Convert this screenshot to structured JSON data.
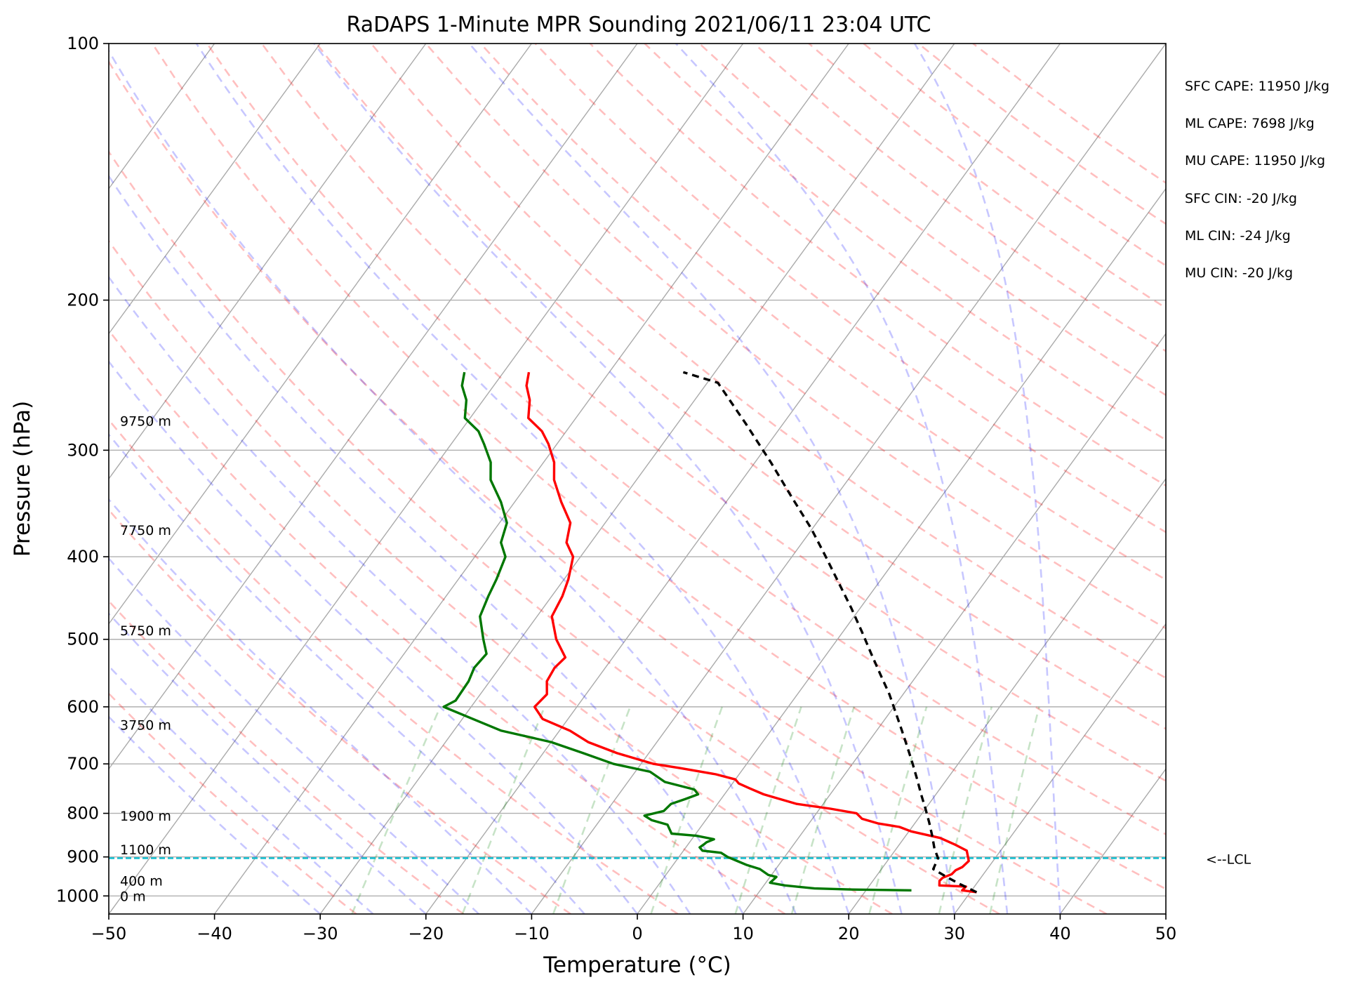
{
  "chart_data": {
    "type": "line",
    "title": "RaDAPS 1-Minute MPR Sounding 2021/06/11 23:04 UTC",
    "xlabel": "Temperature (°C)",
    "ylabel": "Pressure (hPa)",
    "xlim": [
      -50,
      50
    ],
    "ylim": [
      1050,
      100
    ],
    "y_scale": "log",
    "skew": true,
    "grid": true,
    "x_ticks": [
      "−50",
      "−40",
      "−30",
      "−20",
      "−10",
      "0",
      "10",
      "20",
      "30",
      "40",
      "50"
    ],
    "y_ticks": [
      "100",
      "200",
      "300",
      "400",
      "500",
      "600",
      "700",
      "800",
      "900",
      "1000"
    ],
    "height_labels": [
      {
        "text": "0 m",
        "p": 1000
      },
      {
        "text": "400 m",
        "p": 960
      },
      {
        "text": "1100 m",
        "p": 882
      },
      {
        "text": "1900 m",
        "p": 805
      },
      {
        "text": "3750 m",
        "p": 630
      },
      {
        "text": "5750 m",
        "p": 488
      },
      {
        "text": "7750 m",
        "p": 372
      },
      {
        "text": "9750 m",
        "p": 277
      }
    ],
    "parameters": [
      "SFC CAPE: 11950 J/kg",
      "ML CAPE: 7698 J/kg",
      "MU CAPE: 11950 J/kg",
      "SFC CIN: -20 J/kg",
      "ML CIN: -24 J/kg",
      "MU CIN: -20 J/kg"
    ],
    "lcl": {
      "label": "<--LCL",
      "p": 903
    },
    "series": [
      {
        "color": "#ff0000",
        "points": [
          [
            30.6,
            990
          ],
          [
            29.1,
            985
          ],
          [
            29.2,
            975
          ],
          [
            26.6,
            972
          ],
          [
            26.3,
            960
          ],
          [
            26.4,
            952
          ],
          [
            27.0,
            943
          ],
          [
            27.1,
            933
          ],
          [
            27.5,
            925
          ],
          [
            27.7,
            910
          ],
          [
            26.8,
            885
          ],
          [
            25.2,
            870
          ],
          [
            23.4,
            855
          ],
          [
            20.2,
            840
          ],
          [
            18.8,
            830
          ],
          [
            16.5,
            822
          ],
          [
            14.7,
            812
          ],
          [
            13.8,
            800
          ],
          [
            11.0,
            790
          ],
          [
            7.5,
            780
          ],
          [
            5.6,
            770
          ],
          [
            3.7,
            760
          ],
          [
            2.0,
            748
          ],
          [
            0.6,
            738
          ],
          [
            0.0,
            730
          ],
          [
            -2.2,
            720
          ],
          [
            -6.0,
            708
          ],
          [
            -8.8,
            700
          ],
          [
            -13.0,
            680
          ],
          [
            -16.5,
            660
          ],
          [
            -19.0,
            640
          ],
          [
            -22.4,
            620
          ],
          [
            -24.0,
            600
          ],
          [
            -23.7,
            580
          ],
          [
            -24.6,
            560
          ],
          [
            -24.8,
            540
          ],
          [
            -24.5,
            525
          ],
          [
            -26.6,
            500
          ],
          [
            -28.6,
            470
          ],
          [
            -29.0,
            445
          ],
          [
            -29.6,
            425
          ],
          [
            -30.7,
            400
          ],
          [
            -32.3,
            385
          ],
          [
            -33.3,
            365
          ],
          [
            -35.6,
            345
          ],
          [
            -37.8,
            325
          ],
          [
            -39.0,
            310
          ],
          [
            -40.8,
            295
          ],
          [
            -42.3,
            285
          ],
          [
            -44.5,
            275
          ],
          [
            -45.6,
            262
          ],
          [
            -46.9,
            252
          ],
          [
            -47.6,
            243
          ]
        ]
      },
      {
        "color": "#007700",
        "points": [
          [
            24.3,
            985
          ],
          [
            18.7,
            983
          ],
          [
            15.0,
            980
          ],
          [
            12.0,
            972
          ],
          [
            10.4,
            965
          ],
          [
            10.6,
            950
          ],
          [
            9.7,
            945
          ],
          [
            8.5,
            930
          ],
          [
            7.0,
            920
          ],
          [
            5.8,
            910
          ],
          [
            4.6,
            900
          ],
          [
            3.7,
            890
          ],
          [
            1.8,
            885
          ],
          [
            1.3,
            877
          ],
          [
            1.5,
            870
          ],
          [
            1.6,
            865
          ],
          [
            2.1,
            858
          ],
          [
            0.2,
            850
          ],
          [
            -2.3,
            845
          ],
          [
            -2.8,
            835
          ],
          [
            -3.3,
            825
          ],
          [
            -5.1,
            815
          ],
          [
            -6.1,
            805
          ],
          [
            -4.6,
            795
          ],
          [
            -4.4,
            780
          ],
          [
            -3.4,
            770
          ],
          [
            -2.5,
            760
          ],
          [
            -3.2,
            750
          ],
          [
            -6.5,
            735
          ],
          [
            -8.6,
            715
          ],
          [
            -12.6,
            700
          ],
          [
            -16.2,
            680
          ],
          [
            -20.0,
            660
          ],
          [
            -25.5,
            640
          ],
          [
            -29.0,
            620
          ],
          [
            -32.6,
            600
          ],
          [
            -31.9,
            590
          ],
          [
            -32.0,
            560
          ],
          [
            -32.4,
            540
          ],
          [
            -32.2,
            520
          ],
          [
            -33.5,
            500
          ],
          [
            -35.4,
            470
          ],
          [
            -36.0,
            445
          ],
          [
            -36.4,
            425
          ],
          [
            -37.1,
            400
          ],
          [
            -38.5,
            385
          ],
          [
            -39.3,
            365
          ],
          [
            -41.3,
            345
          ],
          [
            -43.8,
            325
          ],
          [
            -45.0,
            310
          ],
          [
            -46.9,
            295
          ],
          [
            -48.3,
            285
          ],
          [
            -50.5,
            275
          ],
          [
            -51.6,
            262
          ],
          [
            -53.0,
            252
          ],
          [
            -53.7,
            243
          ]
        ]
      },
      {
        "color": "#000000",
        "dashed": true,
        "points": [
          [
            30.6,
            990
          ],
          [
            28.6,
            970
          ],
          [
            26.7,
            950
          ],
          [
            24.9,
            930
          ],
          [
            24.6,
            903
          ],
          [
            23.6,
            880
          ],
          [
            22.5,
            850
          ],
          [
            21.3,
            820
          ],
          [
            20.0,
            790
          ],
          [
            18.6,
            760
          ],
          [
            17.2,
            730
          ],
          [
            15.7,
            700
          ],
          [
            14.1,
            670
          ],
          [
            12.4,
            640
          ],
          [
            10.6,
            610
          ],
          [
            8.7,
            580
          ],
          [
            6.5,
            550
          ],
          [
            4.2,
            520
          ],
          [
            1.8,
            490
          ],
          [
            -0.8,
            460
          ],
          [
            -3.7,
            430
          ],
          [
            -6.8,
            400
          ],
          [
            -10.2,
            370
          ],
          [
            -14.2,
            340
          ],
          [
            -18.5,
            310
          ],
          [
            -23.4,
            280
          ],
          [
            -29.0,
            250
          ],
          [
            -33.0,
            243
          ]
        ]
      }
    ]
  }
}
